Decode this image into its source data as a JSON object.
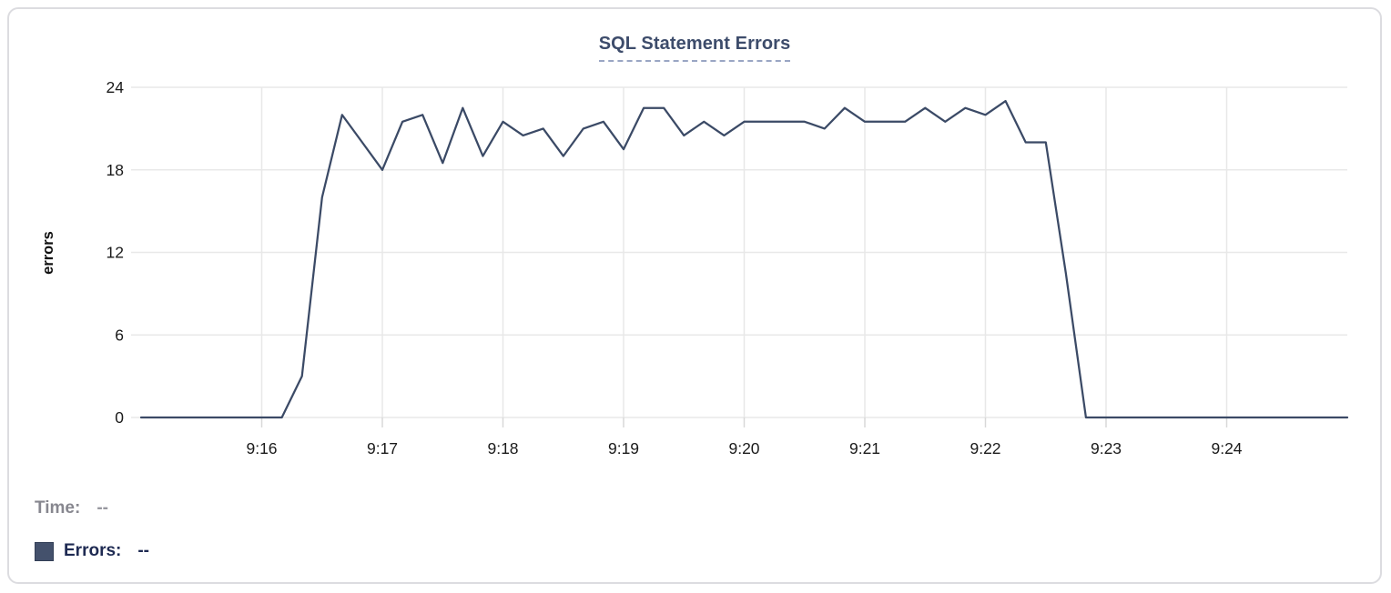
{
  "title": {
    "text": "SQL Statement Errors"
  },
  "readout": {
    "time_label": "Time:",
    "time_value": "--",
    "errors_label": "Errors:",
    "errors_value": "--"
  },
  "colors": {
    "line": "#3b4a66",
    "title_text": "#3d4c6b",
    "title_underline": "#9aa6c4",
    "legend_swatch": "#44516c",
    "errors_text": "#1e2a52",
    "time_label_text": "#87878f",
    "time_value_text": "#98989f",
    "grid": "#e8e8e8",
    "tick_text": "#1a1a1a",
    "axis_title_text": "#111111",
    "card_border": "#dcdce0"
  },
  "chart_data": {
    "type": "line",
    "title": "SQL Statement Errors",
    "xlabel": "",
    "ylabel": "errors",
    "ylim": [
      0,
      24
    ],
    "y_ticks": [
      0,
      6,
      12,
      18,
      24
    ],
    "x_ticks": [
      "9:16",
      "9:17",
      "9:18",
      "9:19",
      "9:20",
      "9:21",
      "9:22",
      "9:23",
      "9:24"
    ],
    "x_start": "9:15:00",
    "x_end": "9:25:00",
    "point_interval_seconds": 10,
    "grid": true,
    "legend_position": "bottom-left",
    "series": [
      {
        "name": "Errors",
        "color": "#3b4a66",
        "values": [
          0,
          0,
          0,
          0,
          0,
          0,
          0,
          0,
          3,
          16,
          22,
          20,
          18,
          21.5,
          22,
          18.5,
          22.5,
          19,
          21.5,
          20.5,
          21,
          19,
          21,
          21.5,
          19.5,
          22.5,
          22.5,
          20.5,
          21.5,
          20.5,
          21.5,
          21.5,
          21.5,
          21.5,
          21,
          22.5,
          21.5,
          21.5,
          21.5,
          22.5,
          21.5,
          22.5,
          22,
          23,
          20,
          20,
          10.5,
          0,
          0,
          0,
          0,
          0,
          0,
          0,
          0,
          0,
          0,
          0,
          0,
          0,
          0
        ]
      }
    ]
  }
}
